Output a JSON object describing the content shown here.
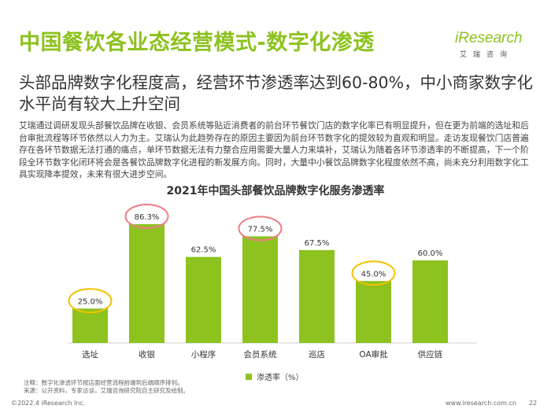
{
  "header": {
    "title": "中国餐饮各业态经营模式-数字化渗透",
    "logo_text": "iResearch",
    "logo_subtext": "艾瑞咨询"
  },
  "subtitle": "头部品牌数字化程度高，经营环节渗透率达到60-80%，中小商家数字化水平尚有较大上升空间",
  "body_text": "艾瑞通过调研发现头部餐饮品牌在收银、会员系统等贴近消费者的前台环节餐饮门店的数字化率已有明显提升，但在更为前端的选址和后台审批流程等环节依然以人力为主。艾瑞认为此趋势存在的原因主要因为前台环节数字化的提效较为直观和明显。走访发现餐饮门店普遍存在各环节数据无法打通的痛点，单环节数据无法有力整合应用需要大量人力来填补，艾瑞认为随着各环节渗透率的不断提高，下一个阶段全环节数字化闭环将会是各餐饮品牌数字化进程的新发展方向。同时，大量中小餐饮品牌数字化程度依然不高，尚未充分利用数字化工具实现降本提效，未来有很大进步空间。",
  "chart_data": {
    "type": "bar",
    "title": "2021年中国头部餐饮品牌数字化服务渗透率",
    "categories": [
      "选址",
      "收银",
      "小程序",
      "会员系统",
      "巡店",
      "OA审批",
      "供应链"
    ],
    "series": [
      {
        "name": "渗透率（%）",
        "values": [
          25.0,
          86.3,
          62.5,
          77.5,
          67.5,
          45.0,
          60.0
        ]
      }
    ],
    "value_labels": [
      "25.0%",
      "86.3%",
      "62.5%",
      "77.5%",
      "67.5%",
      "45.0%",
      "60.0%"
    ],
    "highlighted": [
      {
        "index": 0,
        "ring_color": "#f2c200"
      },
      {
        "index": 1,
        "ring_color": "#ee7b86"
      },
      {
        "index": 3,
        "ring_color": "#ee7b86"
      },
      {
        "index": 5,
        "ring_color": "#f2c200"
      }
    ],
    "ylim": [
      0,
      100
    ],
    "bar_color": "#8dc21f",
    "grid": false,
    "legend_position": "bottom-center"
  },
  "notes": {
    "line1": "注释：数字化渗透环节按店面经营流程前端到后端顺序排列。",
    "line2": "来源：公开资料，专家访谈，艾瑞咨询研究院自主研究及绘制。"
  },
  "footer": {
    "copyright": "©2022.4 iResearch Inc.",
    "website": "www.iresearch.com.cn",
    "page": "22"
  },
  "colors": {
    "accent": "#8dc21f",
    "ring_pink": "#ee7b86",
    "ring_yellow": "#f2c200"
  }
}
